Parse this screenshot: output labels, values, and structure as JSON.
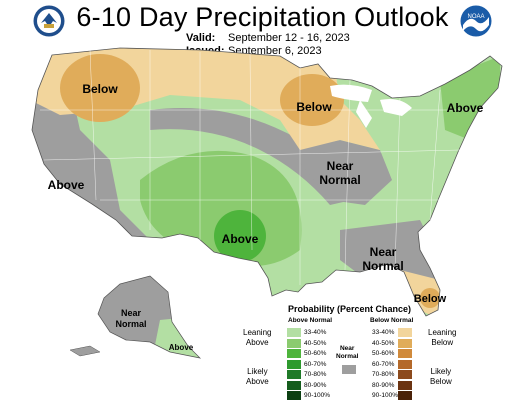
{
  "header": {
    "title": "6-10 Day Precipitation Outlook",
    "valid_label": "Valid:",
    "valid_value": "September 12 - 16, 2023",
    "issued_label": "Issued:",
    "issued_value": "September 6, 2023"
  },
  "logos": {
    "left": "doc-seal-icon",
    "right": "noaa-logo-icon",
    "noaa_text": "NOAA"
  },
  "map_labels": {
    "below_nw": "Below",
    "below_mw": "Below",
    "above_ne": "Above",
    "above_w": "Above",
    "near_normal_c": [
      "Near",
      "Normal"
    ],
    "above_sw": "Above",
    "near_normal_se": [
      "Near",
      "Normal"
    ],
    "below_fl": "Below",
    "near_normal_ak": [
      "Near",
      "Normal"
    ],
    "above_ak": "Above"
  },
  "legend": {
    "title": "Probability (Percent Chance)",
    "above_header": "Above Normal",
    "below_header": "Below Normal",
    "near_header": [
      "Near",
      "Normal"
    ],
    "leaning_above": [
      "Leaning",
      "Above"
    ],
    "likely_above": [
      "Likely",
      "Above"
    ],
    "leaning_below": [
      "Leaning",
      "Below"
    ],
    "likely_below": [
      "Likely",
      "Below"
    ],
    "above_bins": [
      "33-40%",
      "40-50%",
      "50-60%",
      "60-70%",
      "70-80%",
      "80-90%",
      "90-100%"
    ],
    "below_bins": [
      "33-40%",
      "40-50%",
      "50-60%",
      "60-70%",
      "70-80%",
      "80-90%",
      "90-100%"
    ],
    "above_colors": [
      "#b3dfa3",
      "#8bcb6f",
      "#4eb43c",
      "#2e9a2e",
      "#1f7a28",
      "#155d1d",
      "#0c3f12"
    ],
    "below_colors": [
      "#f2d59c",
      "#e0ac5a",
      "#d08a3b",
      "#b4692a",
      "#8c4a1d",
      "#6b3412",
      "#4a2208"
    ],
    "near_color": "#9e9e9e"
  }
}
